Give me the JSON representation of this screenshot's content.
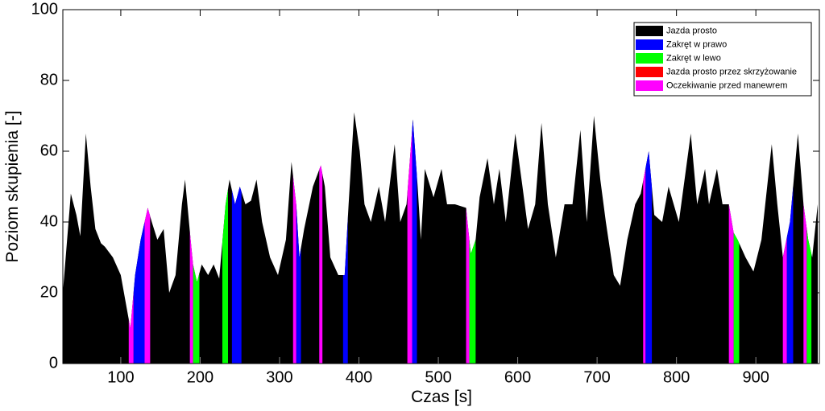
{
  "chart_data": {
    "type": "area",
    "x_label": "Czas [s]",
    "y_label": "Poziom skupienia [-]",
    "xlim": [
      27,
      980
    ],
    "ylim": [
      0,
      100
    ],
    "xticks": [
      100,
      200,
      300,
      400,
      500,
      600,
      700,
      800,
      900
    ],
    "yticks": [
      0,
      20,
      40,
      60,
      80,
      100
    ],
    "grid": false,
    "legend": "upper right",
    "x": [
      27,
      37,
      44,
      49,
      56,
      62,
      68,
      75,
      80,
      90,
      100,
      108,
      112,
      118,
      125,
      134,
      139,
      146,
      154,
      161,
      169,
      177,
      181,
      188,
      191,
      196,
      202,
      210,
      217,
      224,
      232,
      237,
      244,
      250,
      257,
      264,
      271,
      278,
      288,
      298,
      308,
      315,
      321,
      325,
      331,
      342,
      352,
      357,
      364,
      374,
      382,
      387,
      394,
      401,
      407,
      415,
      425,
      433,
      445,
      452,
      460,
      468,
      474,
      478,
      483,
      494,
      504,
      511,
      521,
      535,
      541,
      547,
      552,
      562,
      570,
      577,
      585,
      597,
      606,
      613,
      622,
      630,
      638,
      648,
      659,
      669,
      679,
      687,
      696,
      704,
      711,
      721,
      729,
      738,
      748,
      755,
      765,
      772,
      782,
      790,
      803,
      818,
      826,
      836,
      841,
      851,
      858,
      866,
      872,
      877,
      887,
      897,
      907,
      920,
      927,
      934,
      943,
      953,
      960,
      966,
      971,
      978
    ],
    "values": [
      20,
      48,
      42,
      36,
      65,
      50,
      38,
      34,
      33,
      30,
      25,
      15,
      10,
      25,
      35,
      44,
      40,
      35,
      38,
      20,
      25,
      45,
      52,
      35,
      28,
      23,
      28,
      25,
      28,
      24,
      45,
      52,
      45,
      50,
      45,
      46,
      52,
      40,
      30,
      25,
      35,
      57,
      45,
      30,
      38,
      50,
      56,
      50,
      30,
      25,
      25,
      45,
      71,
      60,
      45,
      40,
      50,
      40,
      62,
      40,
      45,
      69,
      50,
      35,
      55,
      47,
      55,
      45,
      45,
      44,
      31,
      35,
      47,
      58,
      45,
      55,
      40,
      65,
      50,
      38,
      45,
      68,
      45,
      30,
      45,
      45,
      66,
      40,
      70,
      52,
      40,
      25,
      22,
      35,
      45,
      48,
      60,
      42,
      40,
      50,
      40,
      65,
      45,
      55,
      45,
      55,
      45,
      45,
      37,
      35,
      30,
      26,
      35,
      62,
      45,
      30,
      40,
      65,
      45,
      35,
      30,
      45
    ],
    "series": [
      {
        "name": "Jazda prosto",
        "color": "#000000"
      },
      {
        "name": "Zakręt w prawo",
        "color": "#0000ff",
        "spans": [
          [
            116,
            130
          ],
          [
            240,
            252
          ],
          [
            321,
            327
          ],
          [
            380,
            386
          ],
          [
            467,
            473
          ],
          [
            761,
            769
          ],
          [
            939,
            947
          ]
        ]
      },
      {
        "name": "Zakręt w lewo",
        "color": "#00ff00",
        "spans": [
          [
            191,
            199
          ],
          [
            228,
            235
          ],
          [
            539,
            547
          ],
          [
            872,
            879
          ],
          [
            964,
            970
          ]
        ]
      },
      {
        "name": "Jazda prosto przez skrzyżowanie",
        "color": "#ff0000",
        "spans": []
      },
      {
        "name": "Oczekiwanie przed manewrem",
        "color": "#ff00ff",
        "spans": [
          [
            110,
            116
          ],
          [
            130,
            137
          ],
          [
            187,
            191
          ],
          [
            317,
            321
          ],
          [
            350,
            354
          ],
          [
            461,
            467
          ],
          [
            535,
            539
          ],
          [
            758,
            761
          ],
          [
            866,
            872
          ],
          [
            934,
            939
          ],
          [
            960,
            964
          ]
        ]
      }
    ]
  }
}
